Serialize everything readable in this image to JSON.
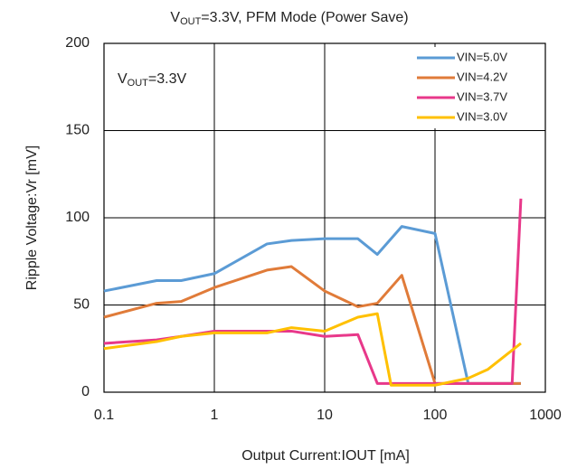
{
  "chart_data": {
    "type": "line",
    "title_parts": [
      "V",
      "OUT",
      "=3.3V, PFM Mode (Power Save)"
    ],
    "annotation_parts": [
      "V",
      "OUT",
      "=3.3V"
    ],
    "xlabel": "Output  Current:IOUT [mA]",
    "ylabel": "Ripple Voltage:Vr [mV]",
    "xscale": "log",
    "xlim": [
      0.1,
      1000
    ],
    "xticks": [
      0.1,
      1,
      10,
      100,
      1000
    ],
    "ylim": [
      0,
      200
    ],
    "yticks": [
      0,
      50,
      100,
      150,
      200
    ],
    "grid": true,
    "legend": "upper right",
    "series": [
      {
        "name": "VIN=5.0V",
        "color": "#5b9bd5",
        "x": [
          0.1,
          0.3,
          0.5,
          1,
          3,
          5,
          10,
          20,
          30,
          50,
          100,
          200,
          600
        ],
        "values": [
          58,
          64,
          64,
          68,
          85,
          87,
          88,
          88,
          79,
          95,
          91,
          5,
          5
        ]
      },
      {
        "name": "VIN=4.2V",
        "color": "#e07b39",
        "x": [
          0.1,
          0.3,
          0.5,
          1,
          3,
          5,
          10,
          20,
          30,
          50,
          100,
          200,
          600
        ],
        "values": [
          43,
          51,
          52,
          60,
          70,
          72,
          58,
          49,
          51,
          67,
          5,
          5,
          5
        ]
      },
      {
        "name": "VIN=3.7V",
        "color": "#e8388a",
        "x": [
          0.1,
          0.3,
          0.5,
          1,
          3,
          5,
          10,
          20,
          30,
          50,
          100,
          500,
          600
        ],
        "values": [
          28,
          30,
          32,
          35,
          35,
          35,
          32,
          33,
          5,
          5,
          5,
          5,
          111
        ]
      },
      {
        "name": "VIN=3.0V",
        "color": "#ffc000",
        "x": [
          0.1,
          0.3,
          0.5,
          1,
          3,
          5,
          10,
          20,
          30,
          40,
          100,
          200,
          300,
          600
        ],
        "values": [
          25,
          29,
          32,
          34,
          34,
          37,
          35,
          43,
          45,
          4,
          4,
          8,
          13,
          28
        ]
      }
    ]
  }
}
